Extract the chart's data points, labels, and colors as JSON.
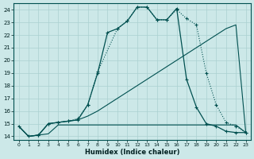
{
  "xlabel": "Humidex (Indice chaleur)",
  "bg_color": "#cce8e8",
  "line_color": "#005050",
  "grid_color": "#aad0d0",
  "xlim": [
    -0.5,
    23.5
  ],
  "ylim": [
    13.7,
    24.5
  ],
  "yticks": [
    14,
    15,
    16,
    17,
    18,
    19,
    20,
    21,
    22,
    23,
    24
  ],
  "xticks": [
    0,
    1,
    2,
    3,
    4,
    5,
    6,
    7,
    8,
    9,
    10,
    11,
    12,
    13,
    14,
    15,
    16,
    17,
    18,
    19,
    20,
    21,
    22,
    23
  ],
  "line_flat_x": [
    0,
    1,
    2,
    3,
    4,
    5,
    6,
    7,
    8,
    9,
    10,
    11,
    12,
    13,
    14,
    15,
    16,
    17,
    18,
    19,
    20,
    21,
    22,
    23
  ],
  "line_flat_y": [
    14.8,
    14.0,
    14.1,
    14.2,
    14.9,
    14.9,
    14.9,
    14.9,
    14.9,
    14.9,
    14.9,
    14.9,
    14.9,
    14.9,
    14.9,
    14.9,
    14.9,
    14.9,
    14.9,
    14.9,
    14.9,
    14.9,
    14.9,
    14.3
  ],
  "line_diag_x": [
    0,
    1,
    2,
    3,
    4,
    5,
    6,
    7,
    8,
    9,
    10,
    11,
    12,
    13,
    14,
    15,
    16,
    17,
    18,
    19,
    20,
    21,
    22,
    23
  ],
  "line_diag_y": [
    14.8,
    14.0,
    14.1,
    15.0,
    15.1,
    15.2,
    15.3,
    15.6,
    16.0,
    16.5,
    17.0,
    17.5,
    18.0,
    18.5,
    19.0,
    19.5,
    20.0,
    20.5,
    21.0,
    21.5,
    22.0,
    22.5,
    22.8,
    14.3
  ],
  "line_main_x": [
    0,
    1,
    2,
    3,
    4,
    5,
    6,
    7,
    8,
    9,
    10,
    11,
    12,
    13,
    14,
    15,
    16,
    17,
    18,
    19,
    20,
    21,
    22,
    23
  ],
  "line_main_y": [
    14.8,
    14.0,
    14.1,
    15.0,
    15.1,
    15.2,
    15.3,
    16.5,
    19.0,
    22.2,
    22.5,
    23.1,
    24.2,
    24.2,
    23.2,
    23.2,
    24.1,
    18.5,
    16.3,
    15.0,
    14.8,
    14.4,
    14.3,
    14.3
  ],
  "line_dot_x": [
    2,
    3,
    4,
    5,
    6,
    7,
    8,
    10,
    11,
    12,
    13,
    14,
    15,
    16,
    17,
    18,
    19,
    20,
    21,
    22,
    23
  ],
  "line_dot_y": [
    14.1,
    15.0,
    15.1,
    15.2,
    15.4,
    16.5,
    19.1,
    22.5,
    23.1,
    24.2,
    24.2,
    23.2,
    23.2,
    24.0,
    23.3,
    22.8,
    19.0,
    16.5,
    15.1,
    14.8,
    14.3
  ]
}
